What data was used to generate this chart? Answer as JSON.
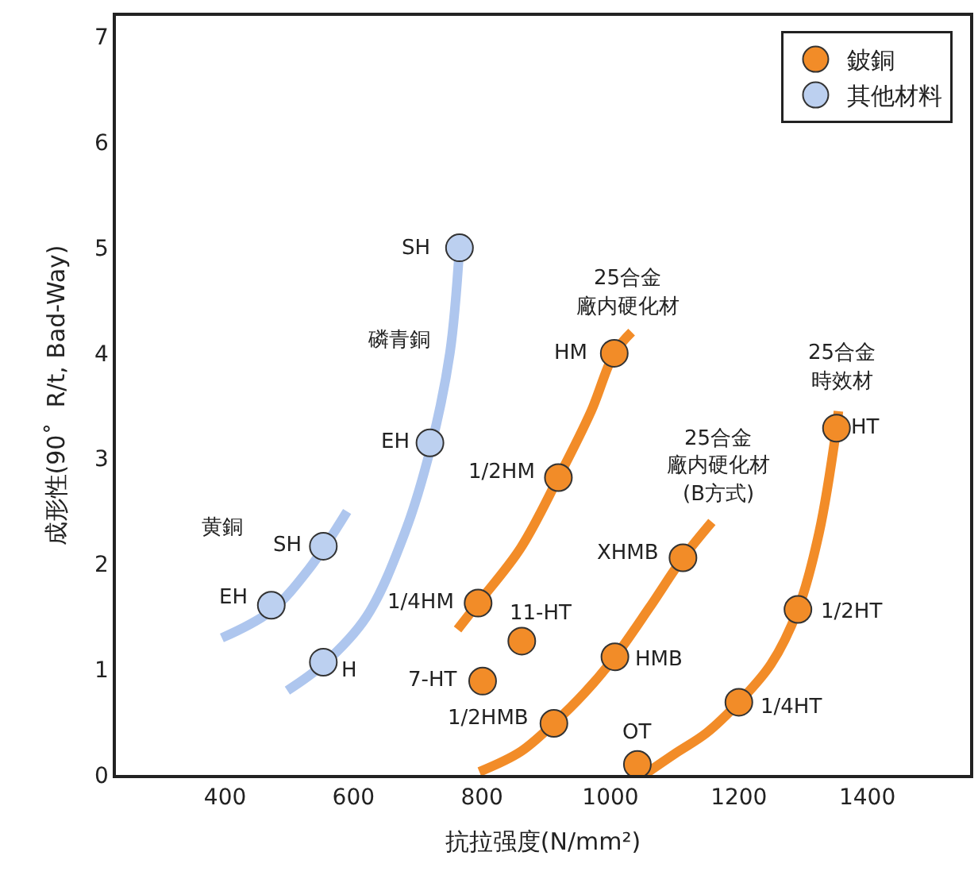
{
  "chart_data": {
    "type": "scatter",
    "xlabel": "抗拉强度(N/mm²)",
    "ylabel": "成形性(90˚  R/t, Bad-Way)",
    "xlim": [
      230,
      1560
    ],
    "xticks": [
      400,
      600,
      800,
      1000,
      1200,
      1400
    ],
    "ylim": [
      0,
      7.2
    ],
    "yticks": [
      0,
      1,
      2,
      3,
      4,
      5,
      6,
      7
    ],
    "legend": "top right",
    "marker": "circle",
    "series": [
      {
        "name": "鈹銅",
        "color": "#f28c28",
        "x": [
          794,
          919,
          1006,
          862,
          801,
          912,
          1007,
          1113,
          1042,
          1200,
          1292,
          1352
        ],
        "values": [
          1.63,
          2.82,
          4.0,
          1.27,
          0.89,
          0.49,
          1.12,
          2.06,
          0.1,
          0.69,
          1.57,
          3.29
        ]
      },
      {
        "name": "其他材料",
        "color": "#bcd0f0",
        "x": [
          472,
          553,
          553,
          719,
          765
        ],
        "values": [
          1.61,
          2.17,
          1.07,
          3.15,
          5.0
        ]
      },
      {
        "type": "line",
        "marker": "none",
        "color": "#aec6ee",
        "x": [
          395,
          470,
          530,
          590
        ],
        "values": [
          1.3,
          1.55,
          1.95,
          2.5
        ]
      },
      {
        "type": "line",
        "marker": "none",
        "color": "#aec6ee",
        "x": [
          497,
          553,
          620,
          680,
          720,
          750,
          765
        ],
        "values": [
          0.8,
          1.05,
          1.5,
          2.3,
          3.1,
          4.0,
          5.0
        ]
      },
      {
        "type": "line",
        "marker": "none",
        "color": "#f28c28",
        "x": [
          762,
          794,
          860,
          919,
          970,
          1006,
          1033
        ],
        "values": [
          1.38,
          1.63,
          2.15,
          2.82,
          3.45,
          4.0,
          4.2
        ]
      },
      {
        "type": "line",
        "marker": "none",
        "color": "#f28c28",
        "x": [
          796,
          860,
          912,
          960,
          1007,
          1060,
          1113,
          1158
        ],
        "values": [
          0.03,
          0.22,
          0.49,
          0.78,
          1.12,
          1.58,
          2.06,
          2.4
        ]
      },
      {
        "type": "line",
        "marker": "none",
        "color": "#f28c28",
        "x": [
          1052,
          1100,
          1150,
          1200,
          1250,
          1292,
          1325,
          1352,
          1355
        ],
        "values": [
          0.0,
          0.2,
          0.4,
          0.69,
          1.05,
          1.57,
          2.3,
          3.29,
          3.45
        ]
      }
    ],
    "annotations": [
      "黄銅",
      {
        "text": "SH",
        "x": 553,
        "y": 2.17
      },
      {
        "text": "EH",
        "x": 472,
        "y": 1.61
      },
      {
        "text": "H",
        "x": 553,
        "y": 1.07
      },
      {
        "text": "磷青銅",
        "x": 750,
        "y": 4.0
      },
      {
        "text": "EH",
        "x": 719,
        "y": 3.15
      },
      {
        "text": "SH",
        "x": 765,
        "y": 5.0
      },
      {
        "text": "25合金",
        "x": 1033,
        "y": 4.2
      },
      {
        "text": "廠内硬化材",
        "x": 1033,
        "y": 4.2
      },
      {
        "text": "HM",
        "x": 1006,
        "y": 4.0
      },
      {
        "text": "1/2HM",
        "x": 919,
        "y": 2.82
      },
      {
        "text": "1/4HM",
        "x": 794,
        "y": 1.63
      },
      {
        "text": "11-HT",
        "x": 862,
        "y": 1.27
      },
      {
        "text": "7-HT",
        "x": 801,
        "y": 0.89
      },
      {
        "text": "1/2HMB",
        "x": 912,
        "y": 0.49
      },
      {
        "text": "HMB",
        "x": 1007,
        "y": 1.12
      },
      {
        "text": "XHMB",
        "x": 1113,
        "y": 2.06
      },
      "25合金",
      "廠内硬化材",
      "(B方式)",
      {
        "text": "OT",
        "x": 1042,
        "y": 0.1
      },
      {
        "text": "1/4HT",
        "x": 1200,
        "y": 0.69
      },
      {
        "text": "1/2HT",
        "x": 1292,
        "y": 1.57
      },
      {
        "text": "HT",
        "x": 1352,
        "y": 3.29
      },
      {
        "text": "25合金",
        "x": 1355,
        "y": 3.45
      },
      {
        "text": "時效材",
        "x": 1355,
        "y": 3.45
      }
    ]
  }
}
